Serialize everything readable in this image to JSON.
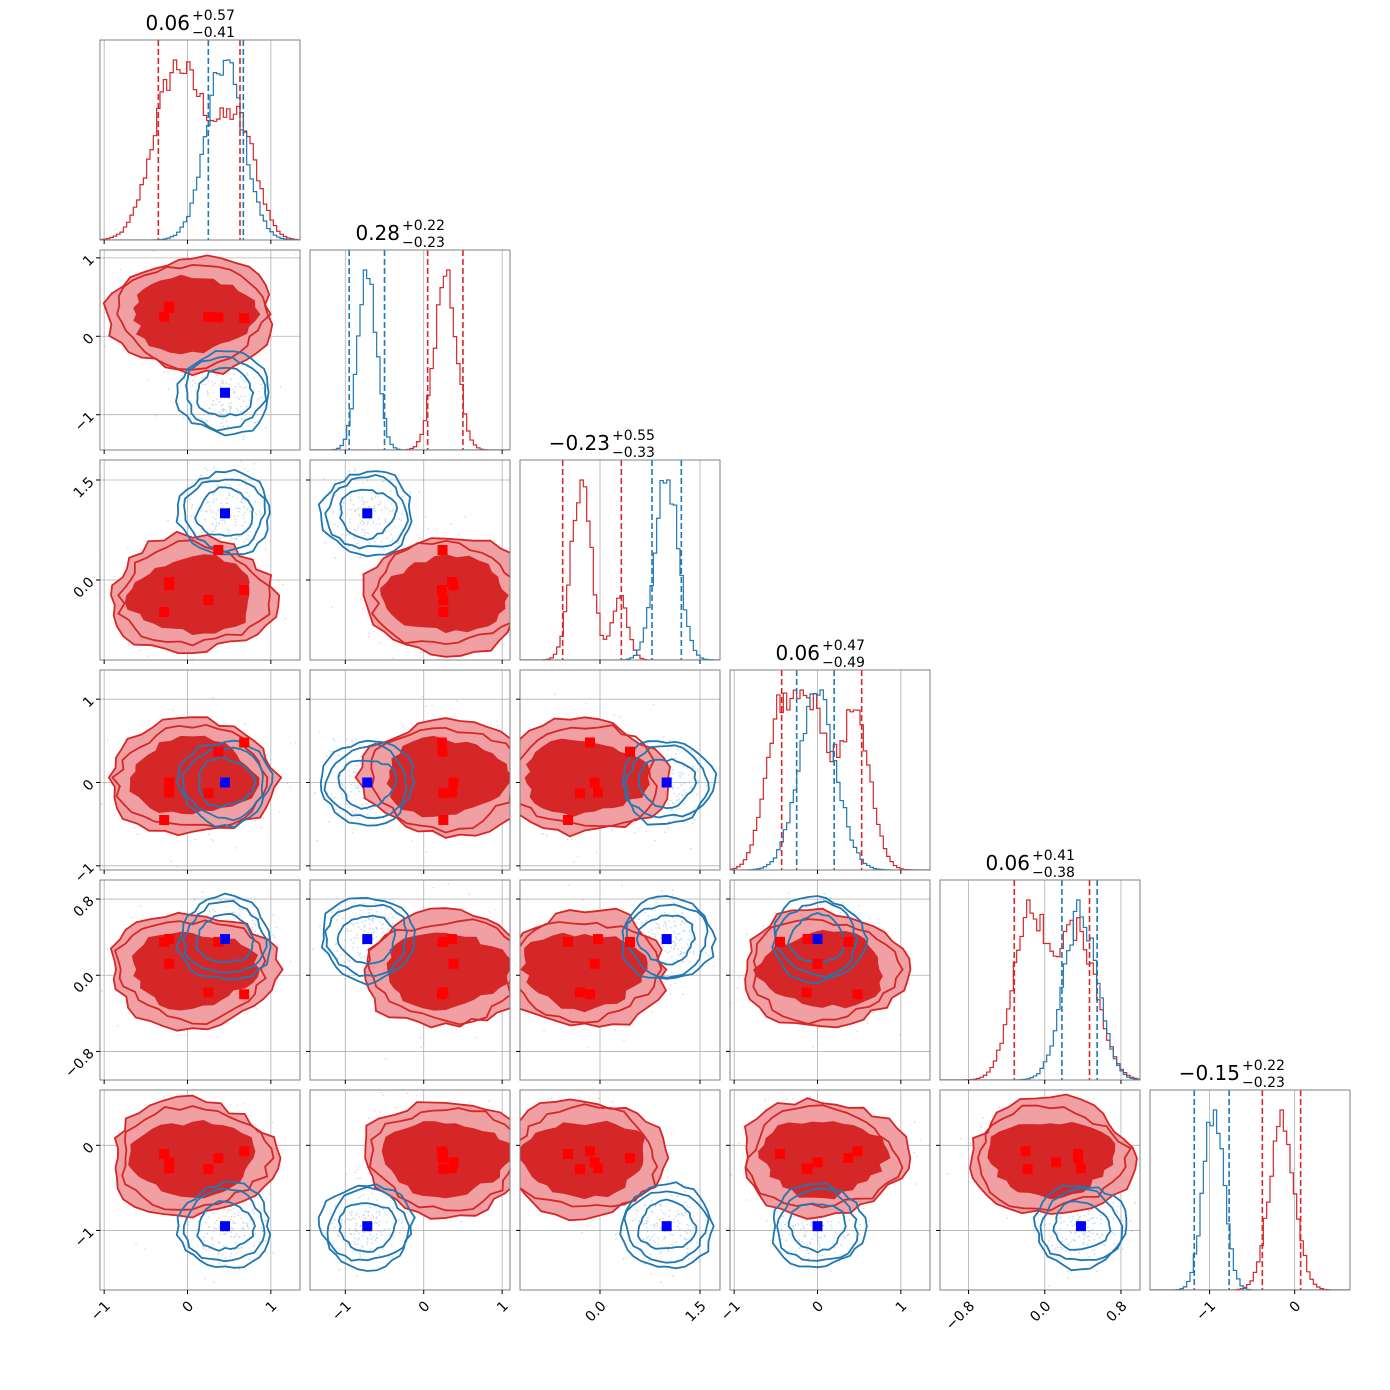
{
  "colors": {
    "red": "#d62728",
    "blue": "#1f77b4",
    "red_marker": "#ff0000",
    "blue_marker": "#0000ff",
    "red_fill_light": "#f0a0a2",
    "grid": "#b0b0b0"
  },
  "chart_data": {
    "type": "corner",
    "n_params": 6,
    "grid": true,
    "series": [
      {
        "color": "red",
        "modes": [
          [
            0.06,
            0.28,
            -0.23,
            0.06,
            0.06,
            -0.15
          ]
        ]
      },
      {
        "color": "blue",
        "modes": [
          [
            0.45,
            -0.72,
            1.0,
            0.0,
            0.38,
            -0.95
          ]
        ]
      }
    ],
    "titles": [
      {
        "value": "0.06",
        "plus": "+0.57",
        "minus": "−0.41"
      },
      {
        "value": "0.28",
        "plus": "+0.22",
        "minus": "−0.23"
      },
      {
        "value": "−0.23",
        "plus": "+0.55",
        "minus": "−0.33"
      },
      {
        "value": "0.06",
        "plus": "+0.47",
        "minus": "−0.49"
      },
      {
        "value": "0.06",
        "plus": "+0.41",
        "minus": "−0.38"
      },
      {
        "value": "−0.15",
        "plus": "+0.22",
        "minus": "−0.23"
      }
    ],
    "ranges": [
      [
        -1.05,
        1.35
      ],
      [
        -1.45,
        1.1
      ],
      [
        -1.2,
        1.8
      ],
      [
        -1.05,
        1.35
      ],
      [
        -1.1,
        1.0
      ],
      [
        -1.7,
        0.65
      ]
    ],
    "ticks": [
      {
        "values": [
          -1,
          0,
          1
        ],
        "labels": [
          "−1",
          "0",
          "1"
        ]
      },
      {
        "values": [
          -1,
          0,
          1
        ],
        "labels": [
          "−1",
          "0",
          "1"
        ]
      },
      {
        "values": [
          0.0,
          1.5
        ],
        "labels": [
          "0.0",
          "1.5"
        ]
      },
      {
        "values": [
          -1,
          0,
          1
        ],
        "labels": [
          "−1",
          "0",
          "1"
        ]
      },
      {
        "values": [
          -0.8,
          0.0,
          0.8
        ],
        "labels": [
          "−0.8",
          "0.0",
          "0.8"
        ]
      },
      {
        "values": [
          -1,
          0
        ],
        "labels": [
          "−1",
          "0"
        ]
      }
    ],
    "y_extra_ticks": {
      "values": [
        -1,
        0,
        1
      ],
      "labels": [
        "−1",
        "0",
        "1"
      ]
    },
    "red_markers": [
      [
        0.37,
        0.24,
        0.45,
        0.37,
        0.35,
        -0.15
      ],
      [
        -0.28,
        0.25,
        -0.48,
        -0.45,
        0.35,
        -0.1
      ],
      [
        0.25,
        0.25,
        -0.3,
        -0.13,
        -0.18,
        -0.28
      ],
      [
        0.68,
        0.23,
        -0.15,
        0.48,
        -0.2,
        -0.07
      ],
      [
        -0.22,
        0.38,
        -0.08,
        0.0,
        0.12,
        -0.2
      ],
      [
        -0.22,
        0.36,
        -0.03,
        -0.12,
        0.38,
        -0.27
      ]
    ],
    "hist_quantiles": {
      "red": [
        [
          -0.35,
          0.63
        ],
        [
          0.05,
          0.5
        ],
        [
          -0.56,
          0.32
        ],
        [
          -0.43,
          0.53
        ],
        [
          -0.32,
          0.47
        ],
        [
          -0.38,
          0.07
        ]
      ],
      "blue": [
        [
          0.25,
          0.67
        ],
        [
          -0.95,
          -0.5
        ],
        [
          0.78,
          1.22
        ],
        [
          -0.25,
          0.2
        ],
        [
          0.18,
          0.55
        ],
        [
          -1.18,
          -0.77
        ]
      ]
    }
  }
}
